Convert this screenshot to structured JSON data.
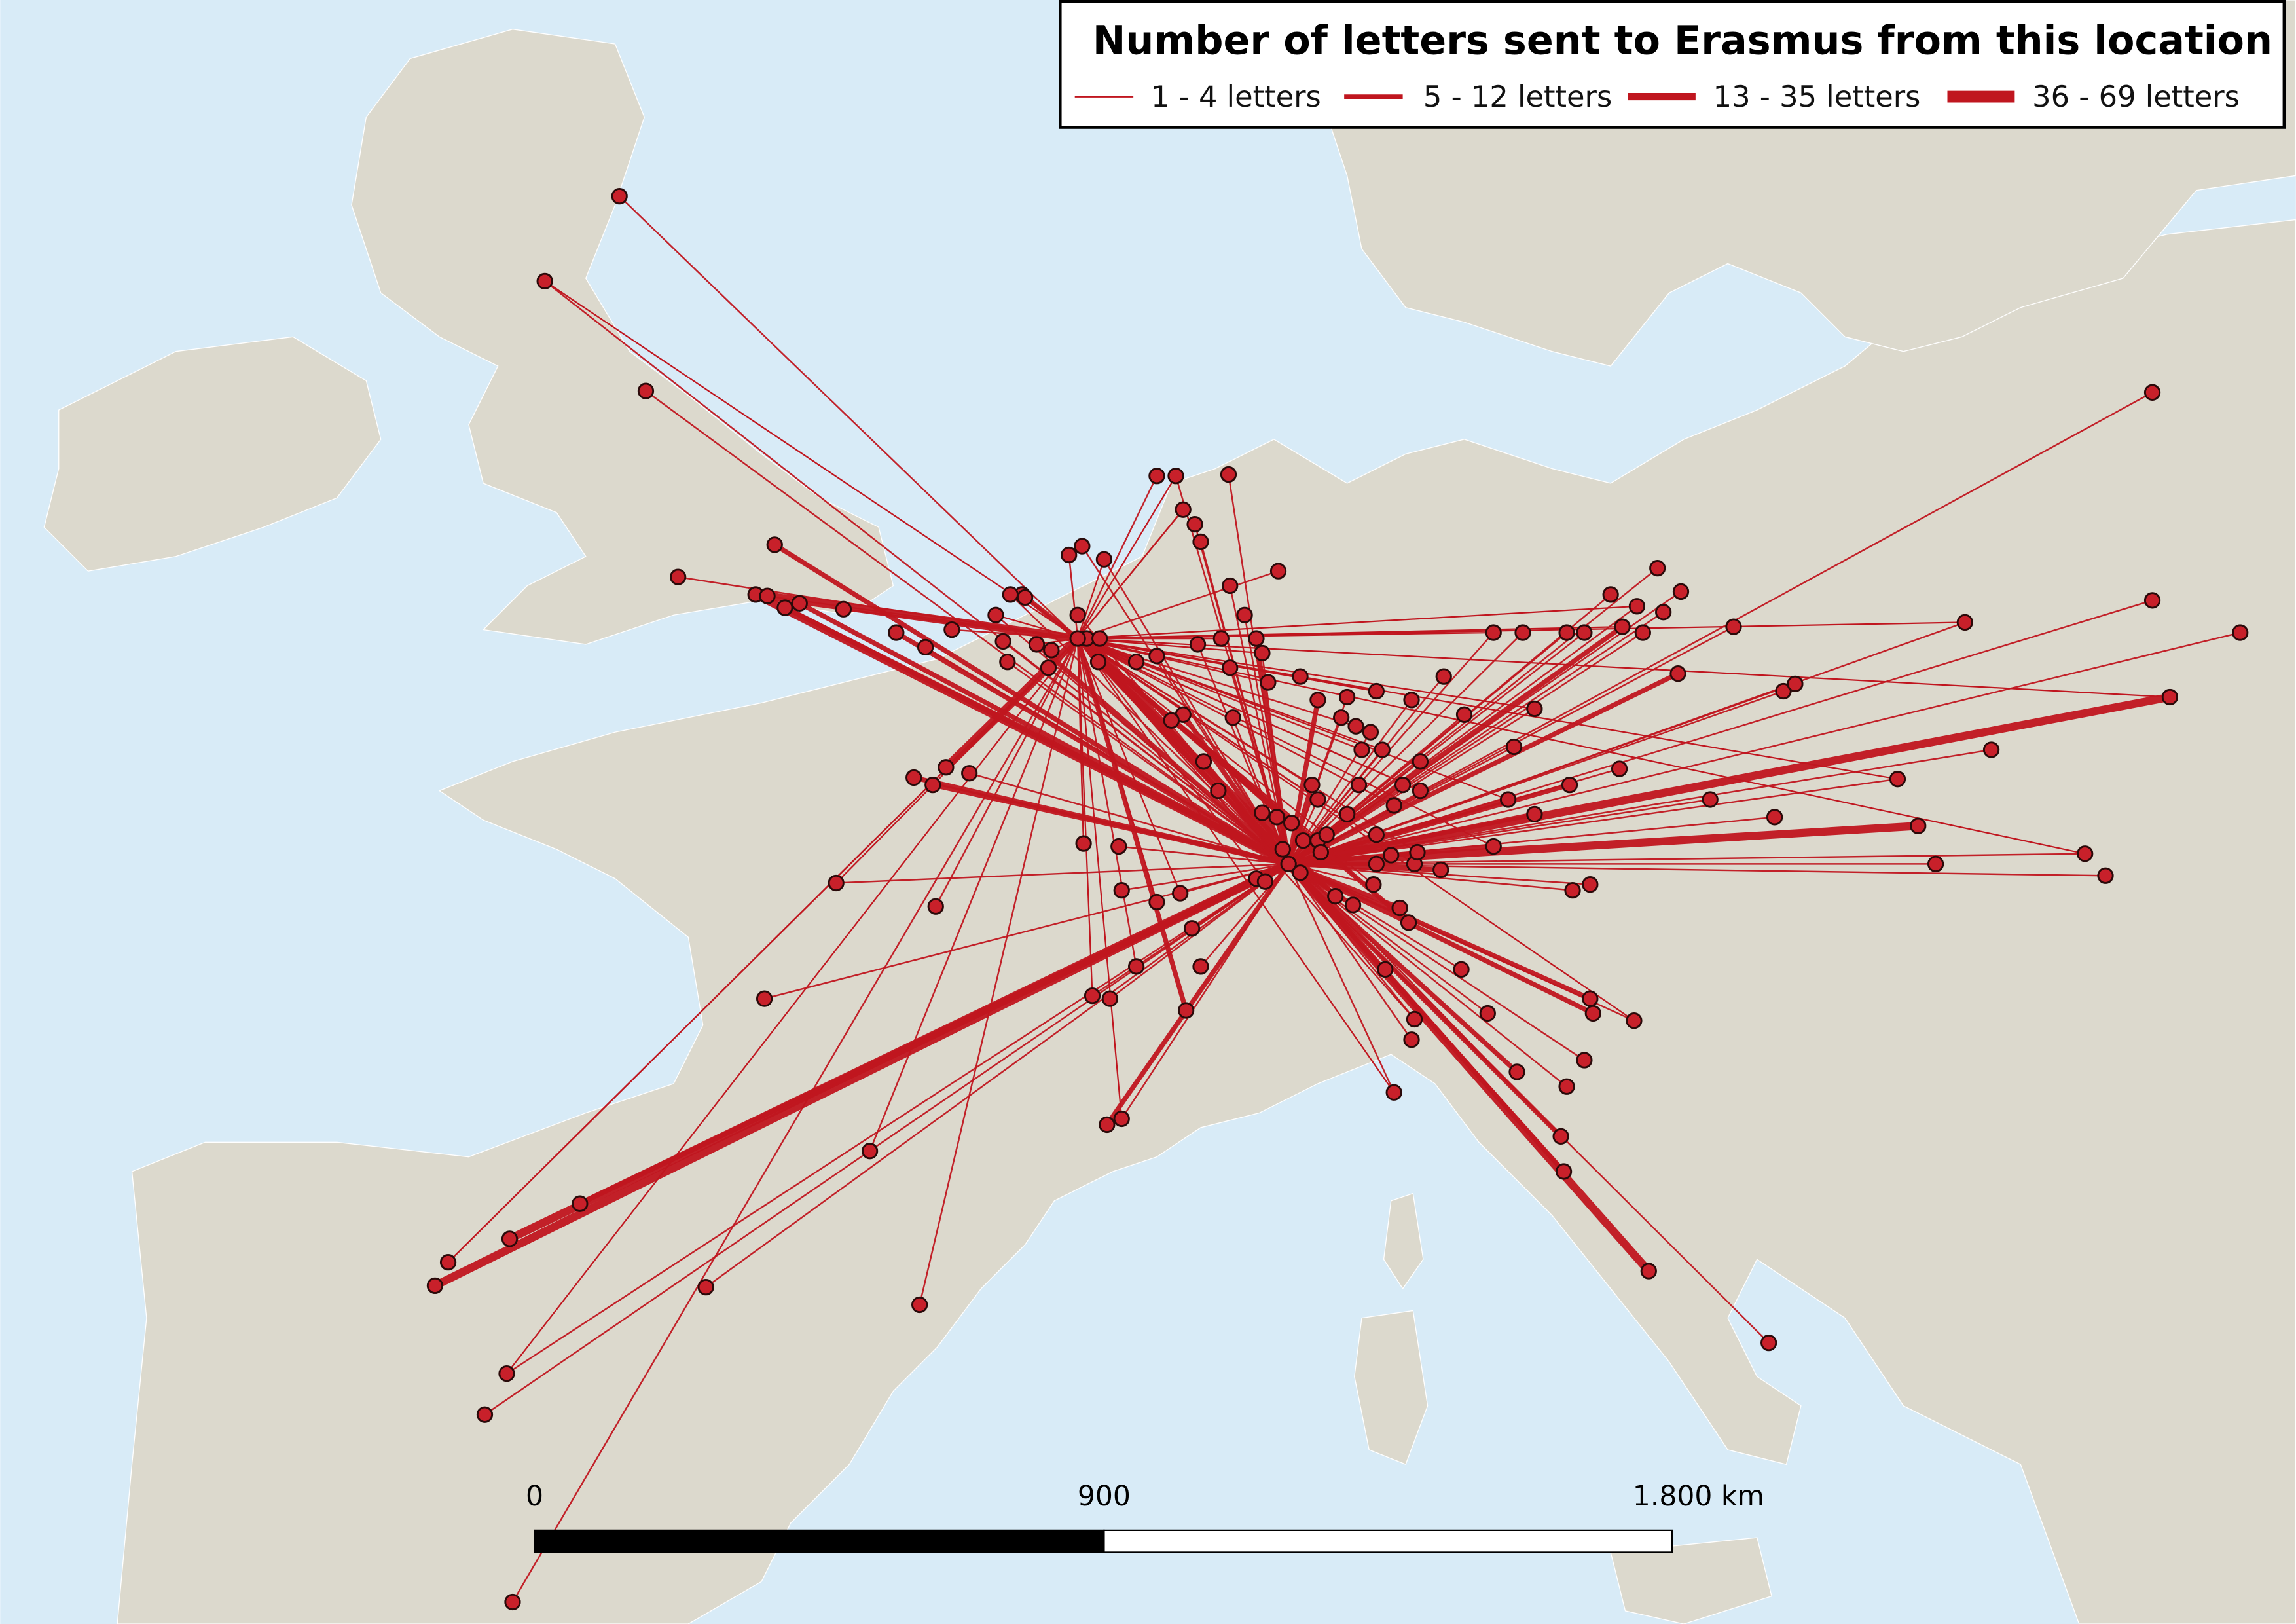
{
  "legend": {
    "title": "Number of letters sent to Erasmus from this location",
    "items": [
      "1 - 4 letters",
      "5 - 12 letters",
      "13 - 35 letters",
      "36 - 69 letters"
    ]
  },
  "scale_bar": {
    "labels": [
      "0",
      "900",
      "1.800 km"
    ]
  }
}
